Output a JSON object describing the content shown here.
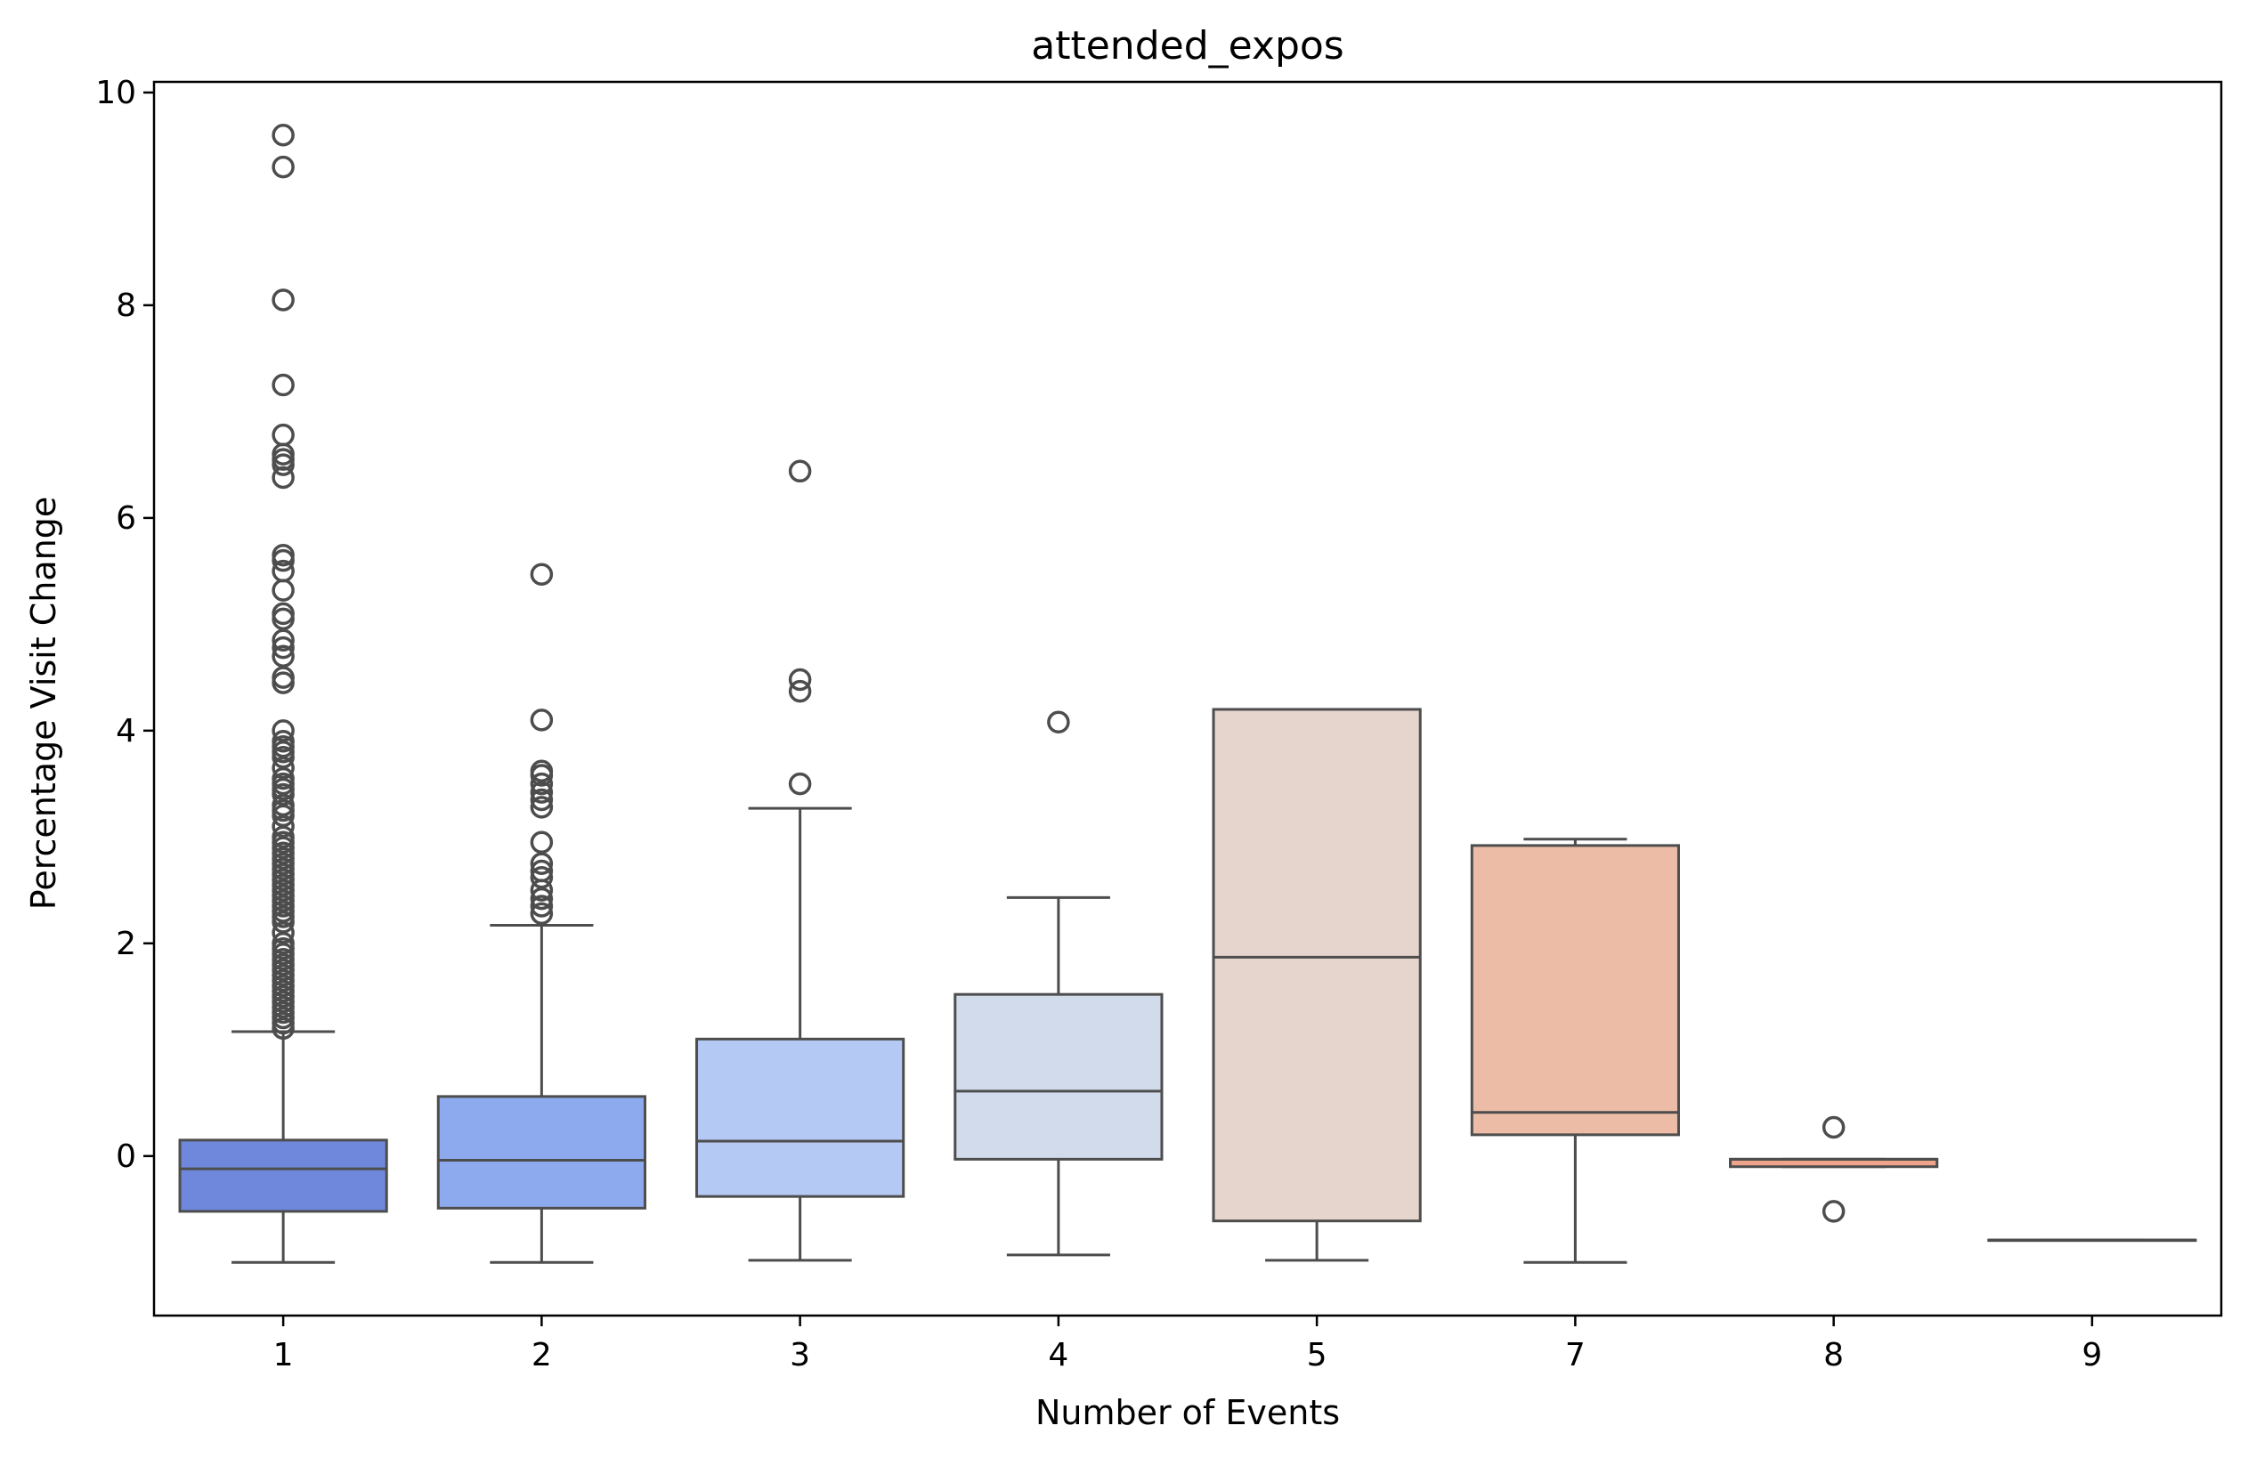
{
  "chart_data": {
    "type": "box",
    "title": "attended_expos",
    "xlabel": "Number of Events",
    "ylabel": "Percentage Visit Change",
    "ylim": [
      -1.5,
      10.1
    ],
    "yticks": [
      0,
      2,
      4,
      6,
      8,
      10
    ],
    "grid": false,
    "legend": "none",
    "categories": [
      "1",
      "2",
      "3",
      "4",
      "5",
      "7",
      "8",
      "9"
    ],
    "boxes": [
      {
        "category": "1",
        "color": "#6f88db",
        "whisker_low": -1.0,
        "q1": -0.52,
        "median": -0.12,
        "q3": 0.15,
        "whisker_high": 1.17,
        "outliers": [
          9.6,
          9.3,
          8.05,
          7.25,
          6.78,
          6.6,
          6.55,
          6.5,
          6.38,
          5.65,
          5.6,
          5.5,
          5.32,
          5.1,
          5.05,
          4.85,
          4.78,
          4.7,
          4.5,
          4.45,
          4.0,
          3.9,
          3.85,
          3.8,
          3.75,
          3.65,
          3.55,
          3.5,
          3.45,
          3.4,
          3.3,
          3.25,
          3.2,
          3.1,
          3.0,
          2.95,
          2.9,
          2.85,
          2.8,
          2.75,
          2.7,
          2.65,
          2.6,
          2.55,
          2.5,
          2.45,
          2.4,
          2.35,
          2.3,
          2.25,
          2.2,
          2.1,
          2.0,
          1.95,
          1.9,
          1.85,
          1.8,
          1.75,
          1.7,
          1.65,
          1.6,
          1.55,
          1.5,
          1.45,
          1.4,
          1.35,
          1.3,
          1.25,
          1.2
        ]
      },
      {
        "category": "2",
        "color": "#8daaee",
        "whisker_low": -1.0,
        "q1": -0.49,
        "median": -0.04,
        "q3": 0.56,
        "whisker_high": 2.17,
        "outliers": [
          5.47,
          4.1,
          3.62,
          3.58,
          3.5,
          3.42,
          3.35,
          3.28,
          2.95,
          2.75,
          2.68,
          2.62,
          2.5,
          2.42,
          2.35,
          2.28
        ]
      },
      {
        "category": "3",
        "color": "#b4c9f4",
        "whisker_low": -0.98,
        "q1": -0.38,
        "median": 0.14,
        "q3": 1.1,
        "whisker_high": 3.27,
        "outliers": [
          6.44,
          4.48,
          4.37,
          3.5
        ]
      },
      {
        "category": "4",
        "color": "#d2dbeb",
        "whisker_low": -0.93,
        "q1": -0.03,
        "median": 0.61,
        "q3": 1.52,
        "whisker_high": 2.43,
        "outliers": [
          4.08
        ]
      },
      {
        "category": "5",
        "color": "#e6d5cd",
        "whisker_low": -0.98,
        "q1": -0.61,
        "median": 1.87,
        "q3": 4.2,
        "whisker_high": 4.2,
        "outliers": []
      },
      {
        "category": "7",
        "color": "#ecbca6",
        "whisker_low": -1.0,
        "q1": 0.2,
        "median": 0.41,
        "q3": 2.92,
        "whisker_high": 2.98,
        "outliers": []
      },
      {
        "category": "8",
        "color": "#eea48a",
        "whisker_low": -0.1,
        "q1": -0.1,
        "median": -0.03,
        "q3": -0.03,
        "whisker_high": -0.03,
        "outliers": [
          0.27,
          -0.52
        ]
      },
      {
        "category": "9",
        "color": "#e8896e",
        "whisker_low": -0.79,
        "q1": -0.79,
        "median": -0.79,
        "q3": -0.79,
        "whisker_high": -0.79,
        "outliers": []
      }
    ]
  }
}
